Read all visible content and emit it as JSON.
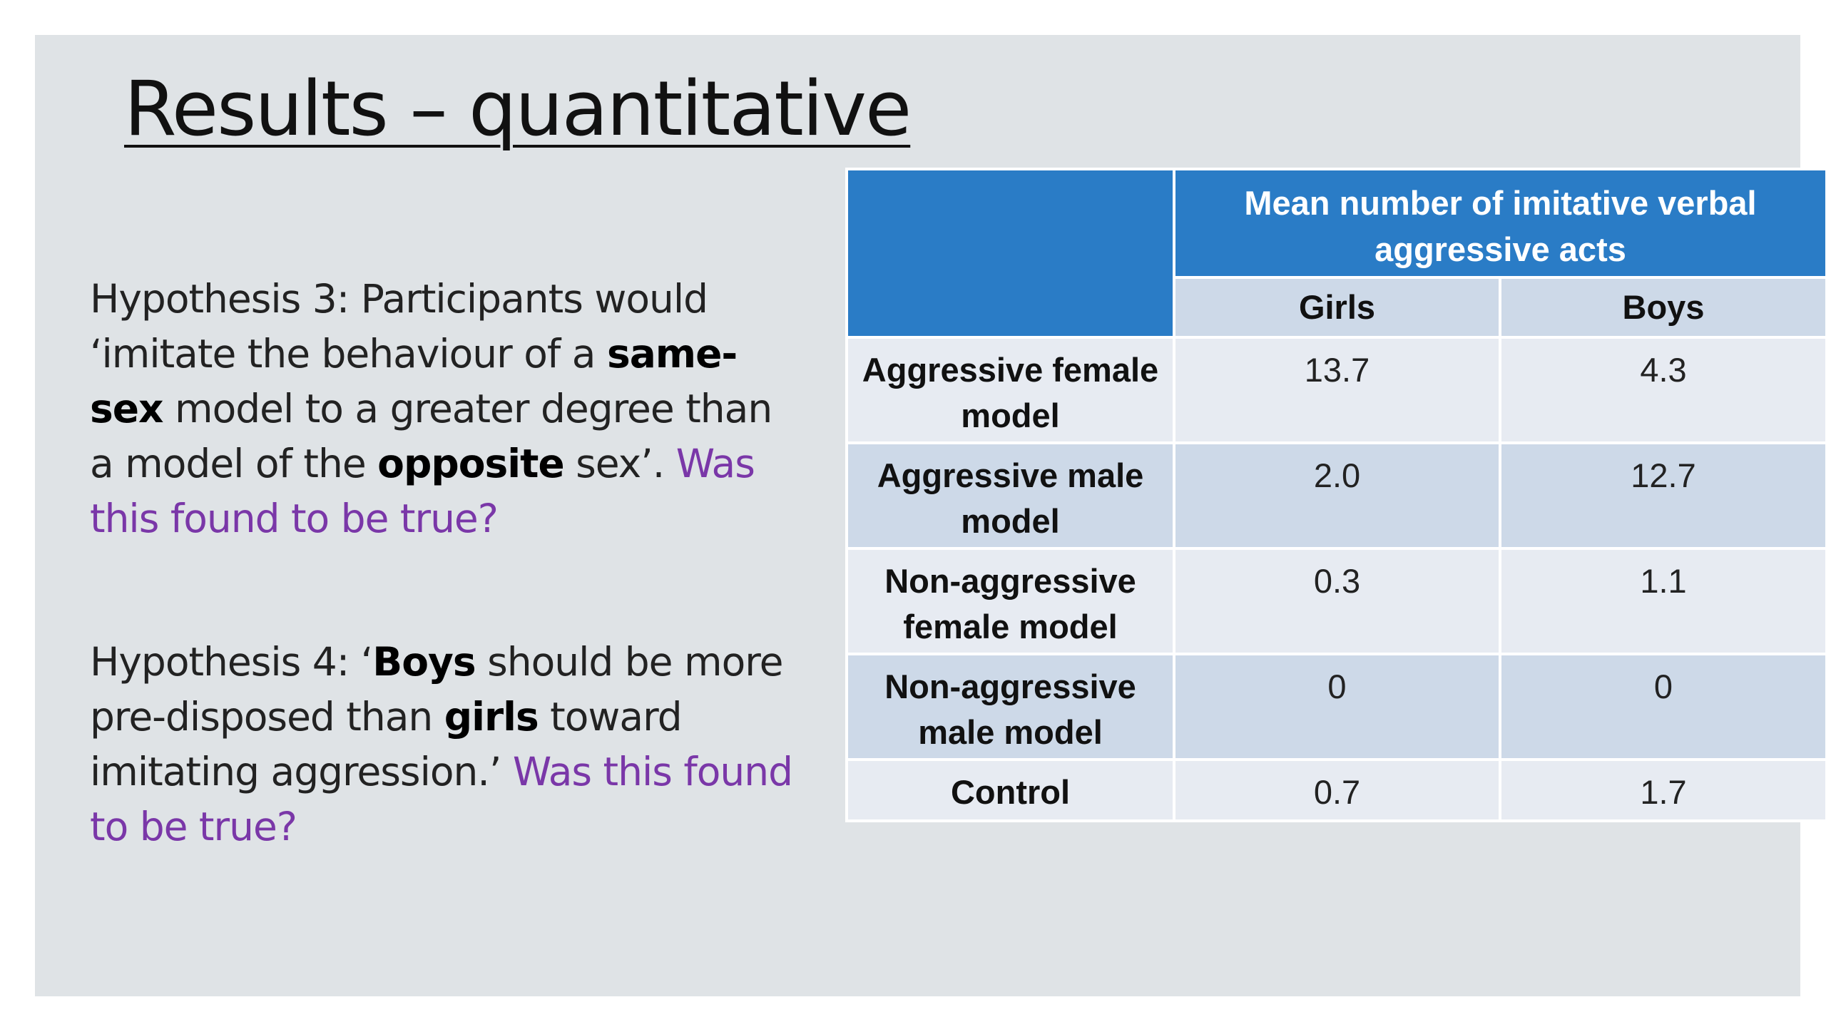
{
  "slide": {
    "title": "Results – quantitative",
    "hypothesis3": {
      "p1": "Hypothesis 3: Participants would ‘imitate the behaviour of a ",
      "b1": "same-sex",
      "p2": " model to a greater degree than a model of the ",
      "b2": "opposite",
      "p3": " sex’. ",
      "question": "Was this found to be true?"
    },
    "hypothesis4": {
      "p1": "Hypothesis 4: ‘",
      "b1": "Boys",
      "p2": " should be more pre-disposed than ",
      "b2": "girls",
      "p3": " toward imitating aggression.’ ",
      "question": "Was this found to be true?"
    }
  },
  "table": {
    "main_header": "Mean number of imitative verbal aggressive acts",
    "columns": [
      "Girls",
      "Boys"
    ],
    "rows": [
      {
        "label": "Aggressive female model",
        "girls": "13.7",
        "boys": "4.3"
      },
      {
        "label": "Aggressive male model",
        "girls": "2.0",
        "boys": "12.7"
      },
      {
        "label": "Non-aggressive female model",
        "girls": "0.3",
        "boys": "1.1"
      },
      {
        "label": "Non-aggressive male model",
        "girls": "0",
        "boys": "0"
      },
      {
        "label": "Control",
        "girls": "0.7",
        "boys": "1.7"
      }
    ]
  },
  "colors": {
    "header_blue": "#2a7cc6",
    "row_light": "#e7ebf2",
    "row_dark": "#cdd9e8",
    "question_purple": "#7a37a8",
    "slide_background": "#dfe3e6"
  }
}
